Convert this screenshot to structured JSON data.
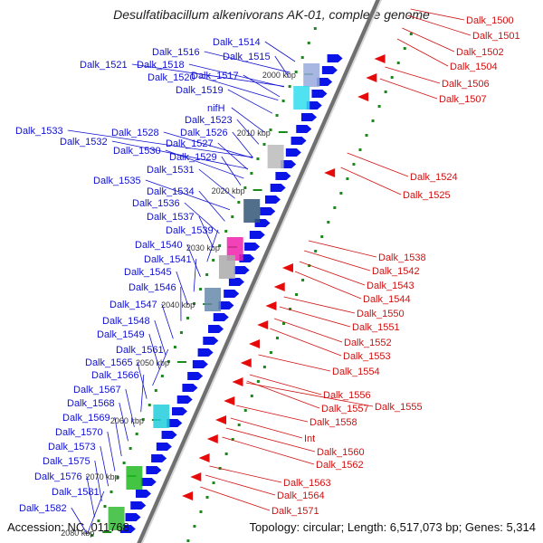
{
  "title": "Desulfatibacillum alkenivorans AK-01, complete genome",
  "accession": "Accession: NC_011768",
  "summary": "Topology: circular; Length: 6,517,073 bp; Genes: 5,314",
  "scale_labels": [
    "2000 kbp",
    "2010 kbp",
    "2020 kbp",
    "2030 kbp",
    "2040 kbp",
    "2050 kbp",
    "2060 kbp",
    "2070 kbp",
    "2080 kbp"
  ],
  "left_labels": [
    "Dalk_1514",
    "Dalk_1515",
    "Dalk_1516",
    "Dalk_1517",
    "Dalk_1521",
    "Dalk_1518",
    "Dalk_1520",
    "Dalk_1519",
    "nifH",
    "Dalk_1523",
    "Dalk_1526",
    "Dalk_1528",
    "Dalk_1527",
    "Dalk_1533",
    "Dalk_1532",
    "Dalk_1530",
    "Dalk_1529",
    "Dalk_1531",
    "Dalk_1535",
    "Dalk_1534",
    "Dalk_1536",
    "Dalk_1537",
    "Dalk_1539",
    "Dalk_1540",
    "Dalk_1541",
    "Dalk_1545",
    "Dalk_1546",
    "Dalk_1547",
    "Dalk_1548",
    "Dalk_1549",
    "Dalk_1561",
    "Dalk_1565",
    "Dalk_1566",
    "Dalk_1567",
    "Dalk_1568",
    "Dalk_1569",
    "Dalk_1570",
    "Dalk_1573",
    "Dalk_1575",
    "Dalk_1576",
    "Dalk_1581",
    "Dalk_1582"
  ],
  "right_labels": [
    "Dalk_1500",
    "Dalk_1501",
    "Dalk_1502",
    "Dalk_1504",
    "Dalk_1506",
    "Dalk_1507",
    "Dalk_1524",
    "Dalk_1525",
    "Dalk_1538",
    "Dalk_1542",
    "Dalk_1543",
    "Dalk_1544",
    "Dalk_1550",
    "Dalk_1551",
    "Dalk_1552",
    "Dalk_1553",
    "Dalk_1554",
    "Dalk_1556",
    "Dalk_1555",
    "Dalk_1557",
    "Dalk_1558",
    "Int",
    "Dalk_1560",
    "Dalk_1562",
    "Dalk_1563",
    "Dalk_1564",
    "Dalk_1571"
  ],
  "colors": {
    "left_label": "#1010d0",
    "right_label": "#d01010",
    "axis": "#a0a0a0",
    "forward_gene": "#0a14e6",
    "reverse_gene": "#e60a0a",
    "tick": "#1a8a1a"
  }
}
